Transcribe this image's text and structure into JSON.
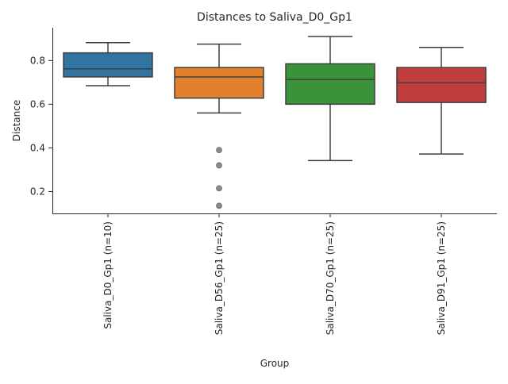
{
  "chart_data": {
    "type": "box",
    "title": "Distances to Saliva_D0_Gp1",
    "xlabel": "Group",
    "ylabel": "Distance",
    "ylim": [
      0.1,
      0.95
    ],
    "yticks": [
      0.2,
      0.4,
      0.6,
      0.8
    ],
    "grid": false,
    "legend": "none",
    "categories": [
      "Saliva_D0_Gp1 (n=10)",
      "Saliva_D56_Gp1 (n=25)",
      "Saliva_D70_Gp1 (n=25)",
      "Saliva_D91_Gp1 (n=25)"
    ],
    "boxes": [
      {
        "category": "Saliva_D0_Gp1 (n=10)",
        "whisker_low": 0.685,
        "q1": 0.725,
        "median": 0.762,
        "q3": 0.835,
        "whisker_high": 0.882,
        "outliers": [],
        "color": "#3274a1"
      },
      {
        "category": "Saliva_D56_Gp1 (n=25)",
        "whisker_low": 0.56,
        "q1": 0.628,
        "median": 0.725,
        "q3": 0.768,
        "whisker_high": 0.875,
        "outliers": [
          0.39,
          0.32,
          0.215,
          0.135
        ],
        "color": "#e1812c"
      },
      {
        "category": "Saliva_D70_Gp1 (n=25)",
        "whisker_low": 0.342,
        "q1": 0.6,
        "median": 0.713,
        "q3": 0.785,
        "whisker_high": 0.91,
        "outliers": [],
        "color": "#3a923a"
      },
      {
        "category": "Saliva_D91_Gp1 (n=25)",
        "whisker_low": 0.372,
        "q1": 0.608,
        "median": 0.698,
        "q3": 0.768,
        "whisker_high": 0.86,
        "outliers": [],
        "color": "#c03d3e"
      }
    ]
  }
}
